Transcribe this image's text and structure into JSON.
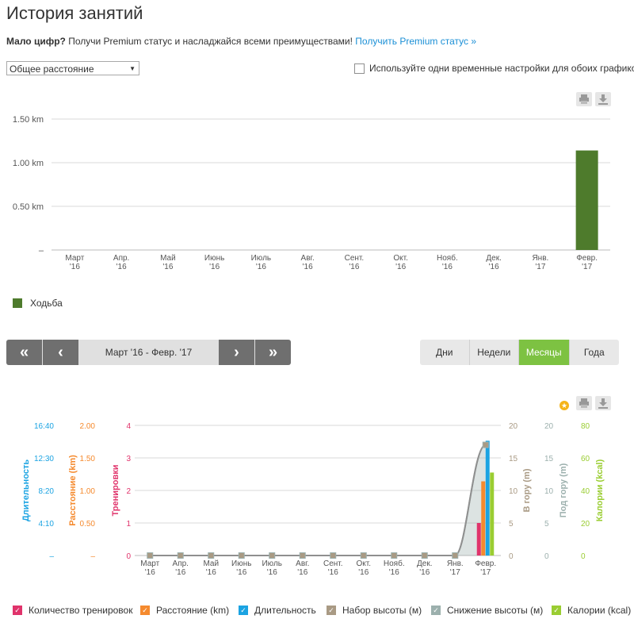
{
  "page": {
    "title": "История занятий",
    "promo_bold": "Мало цифр?",
    "promo_text": " Получи Premium статус и насладжайся всеми преимуществами! ",
    "promo_link": "Получить Premium статус »"
  },
  "controls": {
    "metric_select": "Общее расстояние",
    "sync_label": "Используйте одни временные настройки для обоих графиков"
  },
  "navigation": {
    "first": "«",
    "prev": "‹",
    "range": "Март '16 - Февр. '17",
    "next": "›",
    "last": "»",
    "periods": [
      "Дни",
      "Недели",
      "Месяцы",
      "Года"
    ],
    "active_period": "Месяцы"
  },
  "colors": {
    "walking": "#4e7b2c",
    "workouts": "#e0336b",
    "distance": "#f58a2e",
    "duration": "#1ba3e2",
    "ascent": "#a99a84",
    "descent": "#9cb0ad",
    "calories": "#9acd32",
    "accent_green": "#7dc242"
  },
  "chart_data": [
    {
      "type": "bar",
      "categories": [
        "Март '16",
        "Апр. '16",
        "Май '16",
        "Июнь '16",
        "Июль '16",
        "Авг. '16",
        "Сент. '16",
        "Окт. '16",
        "Нояб. '16",
        "Дек. '16",
        "Янв. '17",
        "Февр. '17"
      ],
      "series": [
        {
          "name": "Ходьба",
          "values": [
            0,
            0,
            0,
            0,
            0,
            0,
            0,
            0,
            0,
            0,
            0,
            1.14
          ]
        }
      ],
      "yticks": [
        "–",
        "0.50 km",
        "1.00 km",
        "1.50 km"
      ],
      "ylim": [
        0,
        1.5
      ],
      "grid": true,
      "legend": "bottom-left"
    },
    {
      "type": "bar",
      "categories": [
        "Март '16",
        "Апр. '16",
        "Май '16",
        "Июнь '16",
        "Июль '16",
        "Авг. '16",
        "Сент. '16",
        "Окт. '16",
        "Нояб. '16",
        "Дек. '16",
        "Янв. '17",
        "Февр. '17"
      ],
      "axes": [
        {
          "label": "Длительность",
          "ticks": [
            "–",
            "4:10",
            "8:20",
            "12:30",
            "16:40"
          ],
          "max": 16.67
        },
        {
          "label": "Расстояние (km)",
          "ticks": [
            "–",
            "0.50",
            "1.00",
            "1.50",
            "2.00"
          ],
          "max": 2
        },
        {
          "label": "Тренировки",
          "ticks": [
            "0",
            "1",
            "2",
            "3",
            "4"
          ],
          "max": 4
        },
        {
          "label": "В гору (m)",
          "ticks": [
            "0",
            "5",
            "10",
            "15",
            "20"
          ],
          "max": 20
        },
        {
          "label": "Под гору (m)",
          "ticks": [
            "0",
            "5",
            "10",
            "15",
            "20"
          ],
          "max": 20
        },
        {
          "label": "Калории (kcal)",
          "ticks": [
            "0",
            "20",
            "40",
            "60",
            "80"
          ],
          "max": 80
        }
      ],
      "series": [
        {
          "name": "Количество тренировок",
          "axis": 2,
          "values": [
            0,
            0,
            0,
            0,
            0,
            0,
            0,
            0,
            0,
            0,
            0,
            1
          ]
        },
        {
          "name": "Расстояние (km)",
          "axis": 1,
          "values": [
            0,
            0,
            0,
            0,
            0,
            0,
            0,
            0,
            0,
            0,
            0,
            1.14
          ]
        },
        {
          "name": "Длительность",
          "axis": 0,
          "values": [
            0,
            0,
            0,
            0,
            0,
            0,
            0,
            0,
            0,
            0,
            0,
            14.7
          ]
        },
        {
          "name": "Набор высоты (м)",
          "axis": 3,
          "values": [
            0,
            0,
            0,
            0,
            0,
            0,
            0,
            0,
            0,
            0,
            0,
            17
          ]
        },
        {
          "name": "Снижение высоты (м)",
          "axis": 4,
          "values": [
            0,
            0,
            0,
            0,
            0,
            0,
            0,
            0,
            0,
            0,
            0,
            17
          ]
        },
        {
          "name": "Калории (kcal)",
          "axis": 5,
          "values": [
            0,
            0,
            0,
            0,
            0,
            0,
            0,
            0,
            0,
            0,
            0,
            51
          ]
        }
      ],
      "legend": "bottom"
    }
  ]
}
